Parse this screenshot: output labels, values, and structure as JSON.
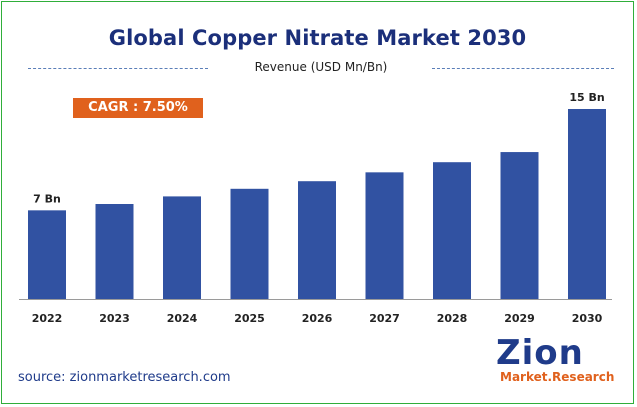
{
  "chart_data": {
    "type": "bar",
    "title": "Global Copper Nitrate Market 2030",
    "subtitle": "Revenue (USD Mn/Bn)",
    "categories": [
      "2022",
      "2023",
      "2024",
      "2025",
      "2026",
      "2027",
      "2028",
      "2029",
      "2030"
    ],
    "values": [
      7,
      7.5,
      8.1,
      8.7,
      9.3,
      10,
      10.8,
      11.6,
      15
    ],
    "data_labels": [
      {
        "category": "2022",
        "text": "7 Bn"
      },
      {
        "category": "2030",
        "text": "15 Bn"
      }
    ],
    "ylim": [
      0,
      15
    ],
    "bar_color": "#3152a2",
    "grid": false
  },
  "cagr_label": "CAGR : 7.50%",
  "source_text": "source: zionmarketresearch.com",
  "logo": {
    "main": "Zion",
    "sub": "Market.Research"
  },
  "colors": {
    "title": "#1b2f7a",
    "badge": "#e0611d",
    "border": "#2fae3a"
  }
}
